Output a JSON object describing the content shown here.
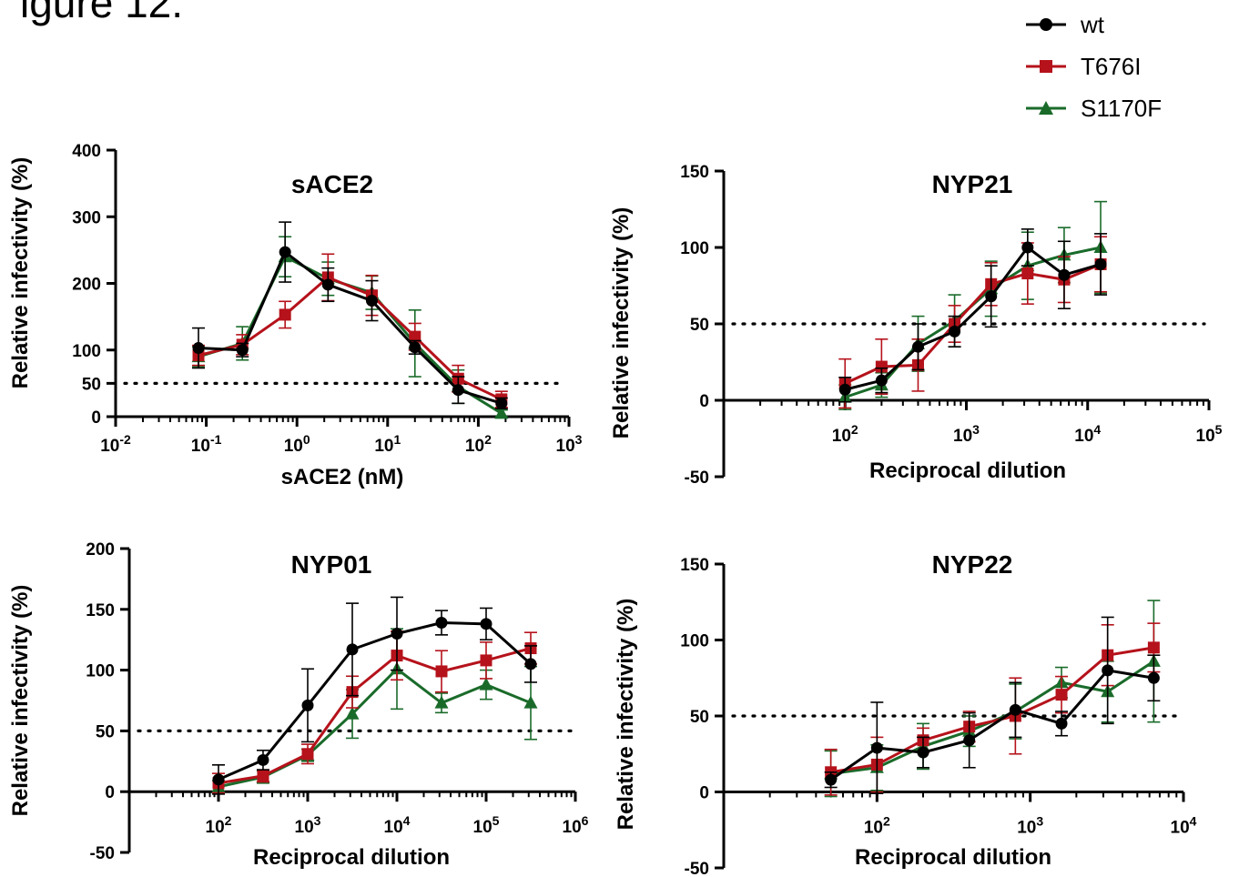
{
  "figure_title": "igure 12.",
  "colors": {
    "wt": "#000000",
    "T676I": "#b5121b",
    "S1170F": "#1a6b2a"
  },
  "legend": [
    {
      "label": "wt",
      "marker": "circle",
      "color": "#000000"
    },
    {
      "label": "T676I",
      "marker": "square",
      "color": "#b5121b"
    },
    {
      "label": "S1170F",
      "marker": "triangle",
      "color": "#1a6b2a"
    }
  ],
  "chart_data": [
    {
      "type": "line",
      "title": "sACE2",
      "xlabel": "sACE2 (nM)",
      "ylabel": "Relative infectivity (%)",
      "xscale": "log",
      "xlim": [
        0.01,
        1000
      ],
      "ylim": [
        0,
        400
      ],
      "yticks": [
        0,
        50,
        100,
        200,
        300,
        400
      ],
      "xtick_labels": [
        [
          "10",
          "-2"
        ],
        [
          "10",
          "-1"
        ],
        [
          "10",
          "0"
        ],
        [
          "10",
          "1"
        ],
        [
          "10",
          "2"
        ],
        [
          "10",
          "3"
        ]
      ],
      "reference_line": 50,
      "x": [
        0.082,
        0.25,
        0.74,
        2.2,
        6.7,
        20,
        60,
        180
      ],
      "series": [
        {
          "name": "wt",
          "values": [
            103,
            100,
            247,
            198,
            174,
            104,
            40,
            20
          ],
          "errors": [
            30,
            10,
            45,
            25,
            30,
            10,
            20,
            8
          ]
        },
        {
          "name": "T676I",
          "values": [
            92,
            108,
            153,
            209,
            182,
            120,
            57,
            26
          ],
          "errors": [
            15,
            15,
            20,
            35,
            30,
            20,
            20,
            12
          ]
        },
        {
          "name": "S1170F",
          "values": [
            90,
            110,
            240,
            207,
            186,
            110,
            45,
            5
          ],
          "errors": [
            15,
            25,
            30,
            25,
            25,
            50,
            25,
            5
          ]
        }
      ]
    },
    {
      "type": "line",
      "title": "NYP21",
      "xlabel": "Reciprocal dilution",
      "ylabel": "Relative infectivity (%)",
      "xscale": "log",
      "xlim": [
        10,
        100000
      ],
      "ylim": [
        -50,
        150
      ],
      "yticks": [
        -50,
        0,
        50,
        100,
        150
      ],
      "xtick_labels": [
        [
          "10",
          "2"
        ],
        [
          "10",
          "3"
        ],
        [
          "10",
          "4"
        ],
        [
          "10",
          "5"
        ]
      ],
      "reference_line": 50,
      "x": [
        100,
        200,
        400,
        800,
        1600,
        3200,
        6400,
        12800
      ],
      "series": [
        {
          "name": "wt",
          "values": [
            7,
            13,
            35,
            45,
            68,
            100,
            82,
            89
          ],
          "errors": [
            8,
            8,
            15,
            10,
            20,
            12,
            22,
            20
          ]
        },
        {
          "name": "T676I",
          "values": [
            11,
            22,
            23,
            50,
            76,
            83,
            79,
            89
          ],
          "errors": [
            16,
            18,
            17,
            12,
            14,
            20,
            15,
            18
          ]
        },
        {
          "name": "S1170F",
          "values": [
            2,
            10,
            37,
            52,
            73,
            88,
            95,
            100
          ],
          "errors": [
            8,
            8,
            18,
            17,
            18,
            22,
            18,
            30
          ]
        }
      ]
    },
    {
      "type": "line",
      "title": "NYP01",
      "xlabel": "Reciprocal dilution",
      "ylabel": "Relative infectivity (%)",
      "xscale": "log",
      "xlim": [
        10,
        1000000
      ],
      "ylim": [
        -50,
        200
      ],
      "yticks": [
        -50,
        0,
        50,
        100,
        150,
        200
      ],
      "xtick_labels": [
        [
          "10",
          "2"
        ],
        [
          "10",
          "3"
        ],
        [
          "10",
          "4"
        ],
        [
          "10",
          "5"
        ],
        [
          "10",
          "6"
        ]
      ],
      "reference_line": 50,
      "x": [
        100,
        316,
        1000,
        3162,
        10000,
        31623,
        100000,
        316228
      ],
      "series": [
        {
          "name": "wt",
          "values": [
            10,
            26,
            71,
            117,
            130,
            139,
            138,
            105
          ],
          "errors": [
            12,
            8,
            30,
            38,
            30,
            10,
            13,
            15
          ]
        },
        {
          "name": "T676I",
          "values": [
            7,
            13,
            31,
            82,
            112,
            99,
            108,
            118
          ],
          "errors": [
            8,
            5,
            8,
            13,
            20,
            17,
            15,
            13
          ]
        },
        {
          "name": "S1170F",
          "values": [
            4,
            12,
            30,
            64,
            101,
            73,
            88,
            73
          ],
          "errors": [
            5,
            5,
            5,
            20,
            33,
            8,
            12,
            30
          ]
        }
      ]
    },
    {
      "type": "line",
      "title": "NYP22",
      "xlabel": "Reciprocal dilution",
      "ylabel": "Relative infectivity (%)",
      "xscale": "log",
      "xlim": [
        10,
        10000
      ],
      "ylim": [
        -50,
        150
      ],
      "yticks": [
        -50,
        0,
        50,
        100,
        150
      ],
      "xtick_labels": [
        [
          "10",
          "2"
        ],
        [
          "10",
          "3"
        ],
        [
          "10",
          "4"
        ]
      ],
      "reference_line": 50,
      "x": [
        50,
        100,
        200,
        400,
        800,
        1600,
        3200,
        6400
      ],
      "series": [
        {
          "name": "wt",
          "values": [
            8,
            29,
            26,
            34,
            54,
            45,
            80,
            75
          ],
          "errors": [
            5,
            30,
            10,
            18,
            18,
            8,
            35,
            15
          ]
        },
        {
          "name": "T676I",
          "values": [
            13,
            18,
            34,
            43,
            50,
            64,
            90,
            95
          ],
          "errors": [
            15,
            18,
            8,
            10,
            25,
            12,
            20,
            16
          ]
        },
        {
          "name": "S1170F",
          "values": [
            12,
            16,
            30,
            40,
            53,
            72,
            66,
            86
          ],
          "errors": [
            15,
            15,
            15,
            10,
            18,
            10,
            20,
            40
          ]
        }
      ]
    }
  ]
}
